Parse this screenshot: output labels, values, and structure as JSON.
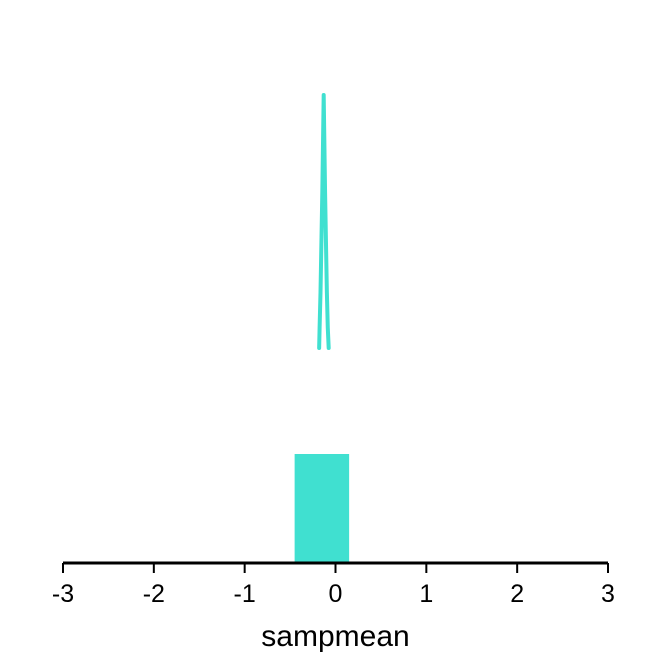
{
  "chart_data": {
    "type": "histogram",
    "title": "",
    "xlabel": "sampmean",
    "ylabel": "",
    "xlim": [
      -3,
      3
    ],
    "x_ticks": [
      "-3",
      "-2",
      "-1",
      "0",
      "1",
      "2",
      "3"
    ],
    "grid": false,
    "legend": "none",
    "color": "#40e0d0",
    "bars": [
      {
        "x0": -0.45,
        "x1": 0.15,
        "height": 1.0
      }
    ],
    "density_curve": {
      "x": [
        -0.18,
        -0.175,
        -0.165,
        -0.155,
        -0.145,
        -0.13,
        -0.115,
        -0.105,
        -0.095,
        -0.085,
        -0.075
      ],
      "y": [
        0.0,
        0.08,
        0.22,
        0.42,
        0.62,
        1.0,
        0.62,
        0.42,
        0.22,
        0.08,
        0.0
      ]
    }
  }
}
